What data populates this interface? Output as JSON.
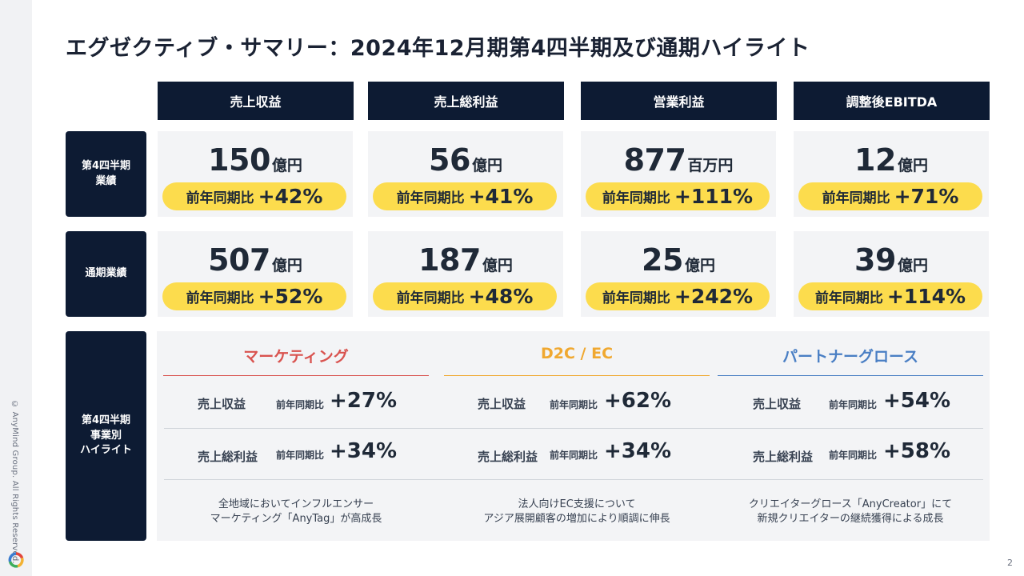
{
  "title": "エグゼクティブ・サマリー：2024年12月期第4四半期及び通期ハイライト",
  "columns": [
    "売上収益",
    "売上総利益",
    "営業利益",
    "調整後EBITDA"
  ],
  "row_labels": {
    "q4": "第4四半期\n業績",
    "full_year": "通期業績",
    "segments": "第4四半期\n事業別\nハイライト"
  },
  "yoy_label": "前年同期比",
  "q4": [
    {
      "value": "150",
      "unit": "億円",
      "yoy": "+42%"
    },
    {
      "value": "56",
      "unit": "億円",
      "yoy": "+41%"
    },
    {
      "value": "877",
      "unit": "百万円",
      "yoy": "+111%"
    },
    {
      "value": "12",
      "unit": "億円",
      "yoy": "+71%"
    }
  ],
  "full_year": [
    {
      "value": "507",
      "unit": "億円",
      "yoy": "+52%"
    },
    {
      "value": "187",
      "unit": "億円",
      "yoy": "+48%"
    },
    {
      "value": "25",
      "unit": "億円",
      "yoy": "+242%"
    },
    {
      "value": "39",
      "unit": "億円",
      "yoy": "+114%"
    }
  ],
  "segments": [
    {
      "name": "マーケティング",
      "color": "#d9534f",
      "rows": [
        {
          "label": "売上収益",
          "yoy_label": "前年同期比",
          "yoy": "+27%"
        },
        {
          "label": "売上総利益",
          "yoy_label": "前年同期比",
          "yoy": "+34%"
        }
      ],
      "note": "全地域においてインフルエンサー\nマーケティング「AnyTag」が高成長"
    },
    {
      "name": "D2C / EC",
      "color": "#f0a830",
      "rows": [
        {
          "label": "売上収益",
          "yoy_label": "前年同期比",
          "yoy": "+62%"
        },
        {
          "label": "売上総利益",
          "yoy_label": "前年同期比",
          "yoy": "+34%"
        }
      ],
      "note": "法人向けEC支援について\nアジア展開顧客の増加により順調に伸長"
    },
    {
      "name": "パートナーグロース",
      "color": "#4a7fc4",
      "rows": [
        {
          "label": "売上収益",
          "yoy_label": "前年同期比",
          "yoy": "+54%"
        },
        {
          "label": "売上総利益",
          "yoy_label": "前年同期比",
          "yoy": "+58%"
        }
      ],
      "note": "クリエイターグロース「AnyCreator」にて\n新規クリエイターの継続獲得による成長"
    }
  ],
  "footer": {
    "copyright": "© AnyMind Group. All Rights Reserved.",
    "page_number": "2",
    "logo_icon": "anymind-logo-icon"
  },
  "colors": {
    "navy": "#0d1b33",
    "highlight": "#fcdc4d",
    "panel": "#f3f4f6"
  }
}
